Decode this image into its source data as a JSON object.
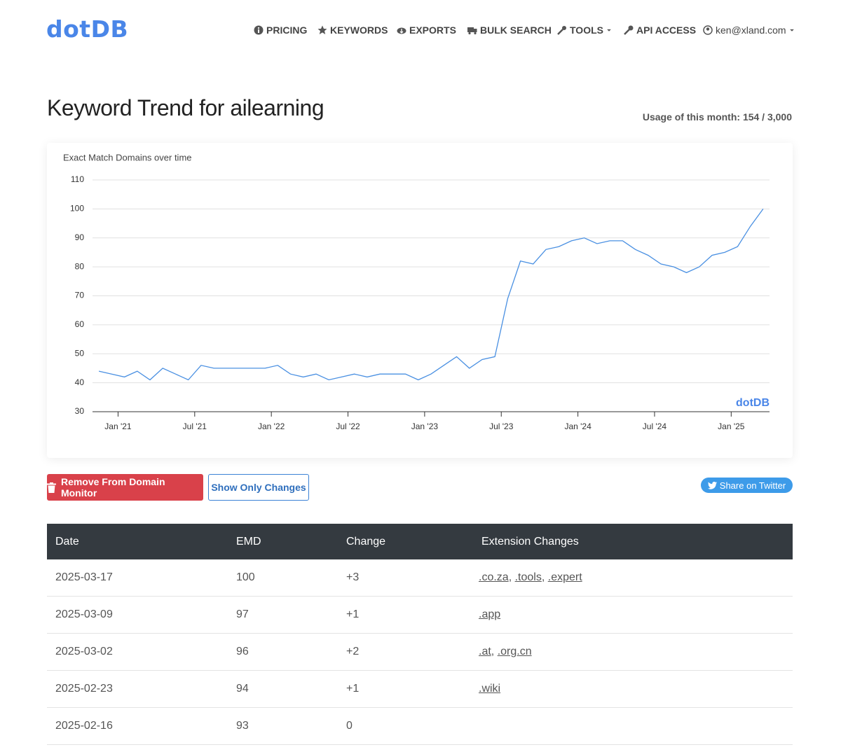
{
  "nav": {
    "logo": "dotDB",
    "items": [
      "PRICING",
      "KEYWORDS",
      "EXPORTS",
      "BULK SEARCH",
      "TOOLS",
      "API ACCESS",
      "ken@xland.com"
    ]
  },
  "header": {
    "title": "Keyword Trend for ailearning",
    "usage": "Usage of this month: 154 / 3,000"
  },
  "chart_data": {
    "type": "line",
    "title": "Exact Match Domains over time",
    "credit": "dotDB",
    "color": "#4a90e2",
    "grid": true,
    "x": [
      "2020-11",
      "2020-12",
      "2021-01",
      "2021-02",
      "2021-03",
      "2021-04",
      "2021-05",
      "2021-06",
      "2021-07",
      "2021-08",
      "2021-09",
      "2021-10",
      "2021-11",
      "2021-12",
      "2022-01",
      "2022-02",
      "2022-03",
      "2022-04",
      "2022-05",
      "2022-06",
      "2022-07",
      "2022-08",
      "2022-09",
      "2022-10",
      "2022-11",
      "2022-12",
      "2023-01",
      "2023-02",
      "2023-03",
      "2023-04",
      "2023-05",
      "2023-06",
      "2023-07",
      "2023-08",
      "2023-09",
      "2023-10",
      "2023-11",
      "2023-12",
      "2024-01",
      "2024-02",
      "2024-03",
      "2024-04",
      "2024-05",
      "2024-06",
      "2024-07",
      "2024-08",
      "2024-09",
      "2024-10",
      "2024-11",
      "2024-12",
      "2025-01",
      "2025-02",
      "2025-03"
    ],
    "values": [
      44,
      43,
      42,
      44,
      41,
      45,
      43,
      41,
      46,
      45,
      45,
      45,
      45,
      45,
      46,
      43,
      42,
      43,
      41,
      42,
      43,
      42,
      43,
      43,
      43,
      41,
      43,
      46,
      49,
      45,
      48,
      49,
      69,
      82,
      81,
      86,
      87,
      89,
      90,
      88,
      89,
      89,
      86,
      84,
      81,
      80,
      78,
      80,
      84,
      85,
      87,
      94,
      100
    ],
    "xlim": [
      "2020-11",
      "2025-04"
    ],
    "xticks": [
      {
        "value": "2021-01",
        "label": "Jan '21"
      },
      {
        "value": "2021-07",
        "label": "Jul '21"
      },
      {
        "value": "2022-01",
        "label": "Jan '22"
      },
      {
        "value": "2022-07",
        "label": "Jul '22"
      },
      {
        "value": "2023-01",
        "label": "Jan '23"
      },
      {
        "value": "2023-07",
        "label": "Jul '23"
      },
      {
        "value": "2024-01",
        "label": "Jan '24"
      },
      {
        "value": "2024-07",
        "label": "Jul '24"
      },
      {
        "value": "2025-01",
        "label": "Jan '25"
      }
    ],
    "ylim": [
      30,
      110
    ],
    "yticks": [
      30,
      40,
      50,
      60,
      70,
      80,
      90,
      100,
      110
    ]
  },
  "buttons": {
    "remove": "Remove From Domain Monitor",
    "changes": "Show Only Changes",
    "twitter": "Share on Twitter"
  },
  "table": {
    "separator": ",",
    "headers": [
      "Date",
      "EMD",
      "Change",
      "Extension Changes"
    ],
    "rows": [
      [
        "2025-03-17",
        "100",
        "+3",
        [
          ".co.za",
          ".tools",
          ".expert"
        ]
      ],
      [
        "2025-03-09",
        "97",
        "+1",
        [
          ".app"
        ]
      ],
      [
        "2025-03-02",
        "96",
        "+2",
        [
          ".at",
          ".org.cn"
        ]
      ],
      [
        "2025-02-23",
        "94",
        "+1",
        [
          ".wiki"
        ]
      ],
      [
        "2025-02-16",
        "93",
        "0",
        []
      ]
    ]
  }
}
